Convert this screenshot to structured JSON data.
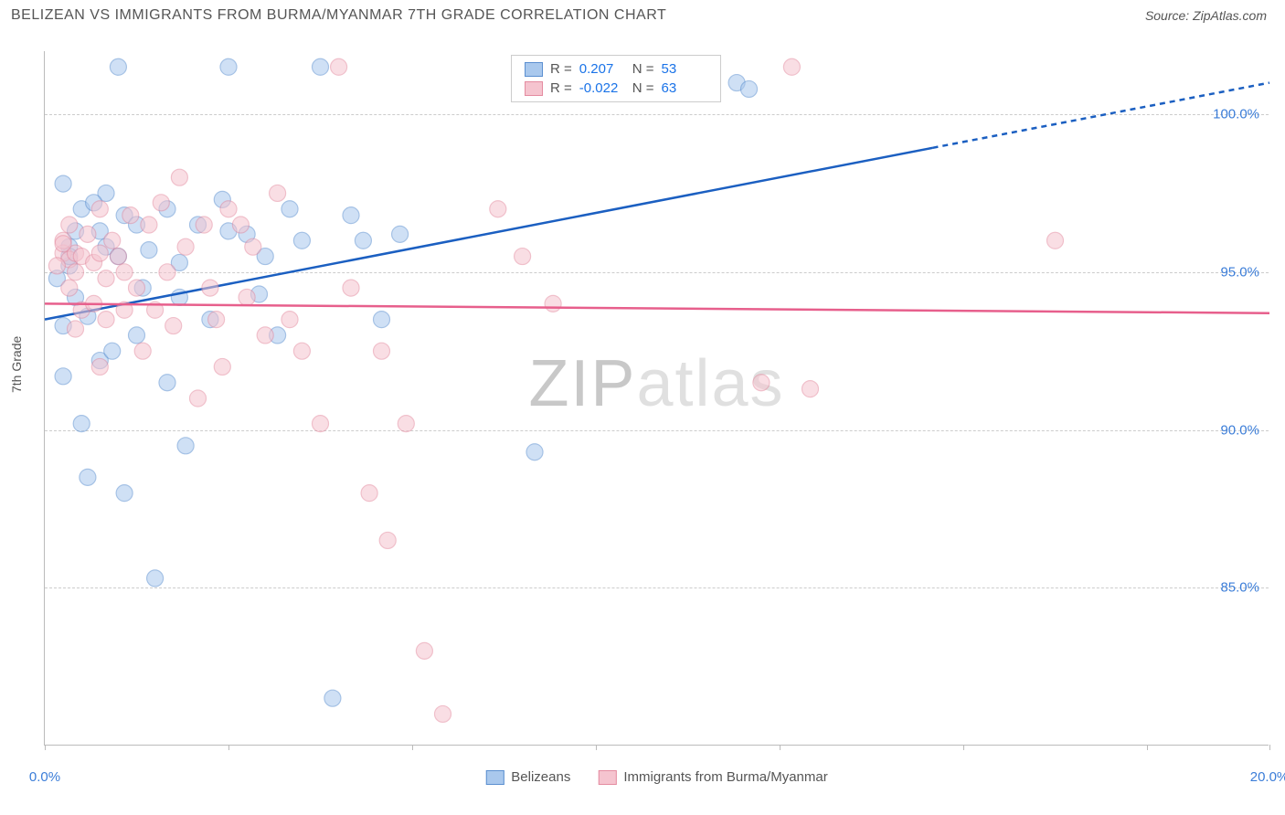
{
  "title": "BELIZEAN VS IMMIGRANTS FROM BURMA/MYANMAR 7TH GRADE CORRELATION CHART",
  "source": "Source: ZipAtlas.com",
  "y_axis_label": "7th Grade",
  "watermark_bold": "ZIP",
  "watermark_light": "atlas",
  "chart": {
    "type": "scatter",
    "background_color": "#ffffff",
    "grid_color": "#cccccc",
    "xlim": [
      0,
      20
    ],
    "ylim": [
      80,
      102
    ],
    "x_ticks": [
      0,
      3,
      6,
      9,
      12,
      15,
      18,
      20
    ],
    "x_tick_labels": {
      "0": "0.0%",
      "20": "20.0%"
    },
    "y_ticks": [
      85,
      90,
      95,
      100
    ],
    "y_tick_labels": [
      "85.0%",
      "90.0%",
      "95.0%",
      "100.0%"
    ],
    "marker_radius": 9,
    "marker_opacity": 0.55,
    "series": [
      {
        "name": "Belizeans",
        "color_fill": "#a9c8ed",
        "color_stroke": "#5b8fd0",
        "trend_color": "#1b5fc1",
        "trend_width": 2.5,
        "trend_dash_after_x": 14.5,
        "trend_y_at_x0": 93.5,
        "trend_y_at_x20": 101.0,
        "R": "0.207",
        "N": "53",
        "points": [
          [
            1.2,
            101.5
          ],
          [
            3.0,
            101.5
          ],
          [
            0.3,
            97.8
          ],
          [
            0.6,
            97.0
          ],
          [
            0.5,
            96.3
          ],
          [
            0.4,
            95.8
          ],
          [
            0.4,
            95.2
          ],
          [
            0.2,
            94.8
          ],
          [
            0.5,
            94.2
          ],
          [
            0.7,
            93.6
          ],
          [
            1.0,
            97.5
          ],
          [
            1.3,
            96.8
          ],
          [
            1.5,
            96.5
          ],
          [
            1.7,
            95.7
          ],
          [
            2.0,
            97.0
          ],
          [
            2.2,
            94.2
          ],
          [
            2.5,
            96.5
          ],
          [
            2.7,
            93.5
          ],
          [
            3.0,
            96.3
          ],
          [
            3.3,
            96.2
          ],
          [
            3.5,
            94.3
          ],
          [
            3.8,
            93.0
          ],
          [
            4.0,
            97.0
          ],
          [
            4.2,
            96.0
          ],
          [
            4.5,
            101.5
          ],
          [
            5.0,
            96.8
          ],
          [
            5.2,
            96.0
          ],
          [
            5.5,
            93.5
          ],
          [
            5.8,
            96.2
          ],
          [
            11.3,
            101.0
          ],
          [
            8.0,
            89.3
          ],
          [
            0.3,
            91.7
          ],
          [
            0.6,
            90.2
          ],
          [
            0.9,
            92.2
          ],
          [
            1.3,
            88.0
          ],
          [
            1.8,
            85.3
          ],
          [
            2.0,
            91.5
          ],
          [
            2.3,
            89.5
          ],
          [
            1.5,
            93.0
          ],
          [
            0.4,
            95.5
          ],
          [
            0.9,
            96.3
          ],
          [
            1.2,
            95.5
          ],
          [
            0.7,
            88.5
          ],
          [
            4.7,
            81.5
          ],
          [
            11.5,
            100.8
          ],
          [
            2.2,
            95.3
          ],
          [
            1.6,
            94.5
          ],
          [
            0.3,
            93.3
          ],
          [
            1.0,
            95.8
          ],
          [
            2.9,
            97.3
          ],
          [
            3.6,
            95.5
          ],
          [
            0.8,
            97.2
          ],
          [
            1.1,
            92.5
          ]
        ]
      },
      {
        "name": "Immigrants from Burma/Myanmar",
        "color_fill": "#f5c4cf",
        "color_stroke": "#e48ba0",
        "trend_color": "#e75f8c",
        "trend_width": 2.5,
        "trend_dash_after_x": null,
        "trend_y_at_x0": 94.0,
        "trend_y_at_x20": 93.7,
        "R": "-0.022",
        "N": "63",
        "points": [
          [
            0.3,
            95.6
          ],
          [
            0.4,
            95.4
          ],
          [
            0.5,
            95.6
          ],
          [
            0.6,
            95.5
          ],
          [
            0.5,
            95.0
          ],
          [
            0.8,
            95.3
          ],
          [
            0.9,
            95.6
          ],
          [
            1.0,
            94.8
          ],
          [
            1.2,
            95.5
          ],
          [
            1.3,
            95.0
          ],
          [
            1.5,
            94.5
          ],
          [
            1.7,
            96.5
          ],
          [
            2.0,
            95.0
          ],
          [
            2.2,
            98.0
          ],
          [
            2.3,
            95.8
          ],
          [
            2.5,
            91.0
          ],
          [
            2.7,
            94.5
          ],
          [
            2.8,
            93.5
          ],
          [
            3.0,
            97.0
          ],
          [
            3.2,
            96.5
          ],
          [
            3.4,
            95.8
          ],
          [
            3.6,
            93.0
          ],
          [
            3.8,
            97.5
          ],
          [
            4.0,
            93.5
          ],
          [
            4.2,
            92.5
          ],
          [
            4.5,
            90.2
          ],
          [
            4.8,
            101.5
          ],
          [
            5.0,
            94.5
          ],
          [
            5.3,
            88.0
          ],
          [
            5.5,
            92.5
          ],
          [
            5.6,
            86.5
          ],
          [
            5.9,
            90.2
          ],
          [
            6.2,
            83.0
          ],
          [
            6.5,
            81.0
          ],
          [
            7.4,
            97.0
          ],
          [
            7.8,
            95.5
          ],
          [
            8.3,
            94.0
          ],
          [
            12.2,
            101.5
          ],
          [
            11.7,
            91.5
          ],
          [
            12.5,
            91.3
          ],
          [
            16.5,
            96.0
          ],
          [
            1.0,
            93.5
          ],
          [
            1.3,
            93.8
          ],
          [
            1.6,
            92.5
          ],
          [
            1.8,
            93.8
          ],
          [
            0.9,
            92.0
          ],
          [
            2.1,
            93.3
          ],
          [
            2.6,
            96.5
          ],
          [
            0.7,
            96.2
          ],
          [
            0.3,
            96.0
          ],
          [
            0.4,
            94.5
          ],
          [
            0.6,
            93.8
          ],
          [
            0.5,
            93.2
          ],
          [
            0.8,
            94.0
          ],
          [
            1.1,
            96.0
          ],
          [
            2.9,
            92.0
          ],
          [
            3.3,
            94.2
          ],
          [
            1.9,
            97.2
          ],
          [
            0.2,
            95.2
          ],
          [
            0.3,
            95.9
          ],
          [
            0.9,
            97.0
          ],
          [
            0.4,
            96.5
          ],
          [
            1.4,
            96.8
          ]
        ]
      }
    ]
  },
  "bottom_legend": [
    {
      "label": "Belizeans",
      "fill": "#a9c8ed",
      "stroke": "#5b8fd0"
    },
    {
      "label": "Immigrants from Burma/Myanmar",
      "fill": "#f5c4cf",
      "stroke": "#e48ba0"
    }
  ]
}
